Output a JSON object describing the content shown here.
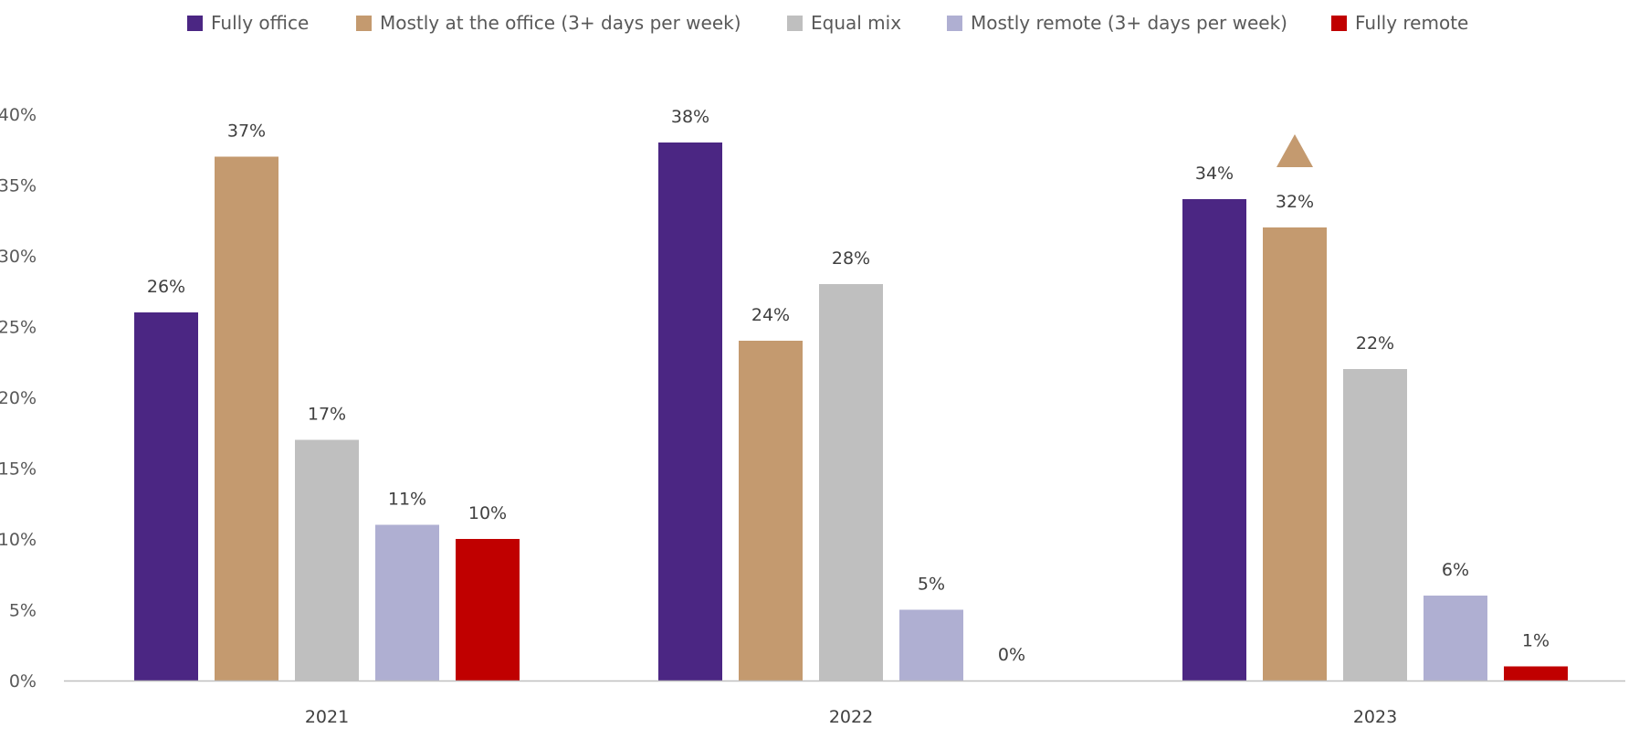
{
  "chart_data": {
    "type": "bar",
    "categories": [
      "2021",
      "2022",
      "2023"
    ],
    "series": [
      {
        "name": "Fully office",
        "color": "#4b2683",
        "values": [
          26,
          38,
          34
        ]
      },
      {
        "name": "Mostly at the office (3+ days per week)",
        "color": "#c49a6f",
        "values": [
          37,
          24,
          32
        ]
      },
      {
        "name": "Equal mix",
        "color": "#bfbfbf",
        "values": [
          17,
          28,
          22
        ]
      },
      {
        "name": "Mostly remote (3+ days per week)",
        "color": "#afafd2",
        "values": [
          11,
          5,
          6
        ]
      },
      {
        "name": "Fully remote",
        "color": "#c00000",
        "values": [
          10,
          0,
          1
        ]
      }
    ],
    "value_labels": [
      [
        "26%",
        "37%",
        "17%",
        "11%",
        "10%"
      ],
      [
        "38%",
        "24%",
        "28%",
        "5%",
        "0%"
      ],
      [
        "34%",
        "32%",
        "22%",
        "6%",
        "1%"
      ]
    ],
    "yticks": [
      "0%",
      "5%",
      "10%",
      "15%",
      "20%",
      "25%",
      "30%",
      "35%",
      "40%"
    ],
    "ylim": [
      0,
      40
    ],
    "legend_position": "top",
    "gridlines": false,
    "annotations": [
      {
        "type": "up-triangle",
        "category": "2023",
        "series": "Mostly at the office (3+ days per week)",
        "color": "#c49a6f"
      }
    ],
    "title": "",
    "xlabel": "",
    "ylabel": ""
  }
}
